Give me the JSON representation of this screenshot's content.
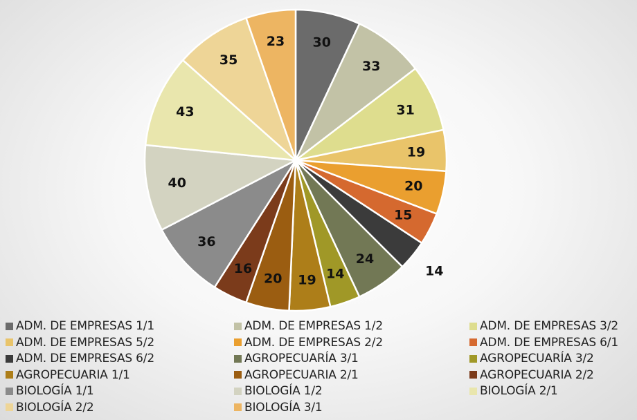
{
  "chart_data": {
    "type": "pie",
    "title": "",
    "start_angle_deg": 0,
    "direction": "clockwise",
    "data_labels": true,
    "legend_position": "bottom",
    "series": [
      {
        "name": "ADM. DE EMPRESAS 1/1",
        "value": 30,
        "color": "#6b6b6b"
      },
      {
        "name": "ADM. DE EMPRESAS 1/2",
        "value": 33,
        "color": "#c2c2a6"
      },
      {
        "name": "ADM. DE EMPRESAS 3/2",
        "value": 31,
        "color": "#dedd8e"
      },
      {
        "name": "ADM. DE EMPRESAS 5/2",
        "value": 19,
        "color": "#e9c46a"
      },
      {
        "name": "ADM. DE EMPRESAS 2/2",
        "value": 20,
        "color": "#ea9f2f"
      },
      {
        "name": "ADM. DE EMPRESAS 6/1",
        "value": 15,
        "color": "#d5692f"
      },
      {
        "name": "ADM. DE EMPRESAS 6/2",
        "value": 14,
        "color": "#3b3b3b"
      },
      {
        "name": "AGROPECUARÍA 3/1",
        "value": 24,
        "color": "#727855"
      },
      {
        "name": "AGROPECUARÍA 3/2",
        "value": 14,
        "color": "#a09827"
      },
      {
        "name": "AGROPECUARIA 1/1",
        "value": 19,
        "color": "#ad7e19"
      },
      {
        "name": "AGROPECUARIA 2/1",
        "value": 20,
        "color": "#9b5d11"
      },
      {
        "name": "AGROPECUARIA 2/2",
        "value": 16,
        "color": "#7b3b1b"
      },
      {
        "name": "BIOLOGÍA 1/1",
        "value": 36,
        "color": "#8b8b8b"
      },
      {
        "name": "BIOLOGÍA 1/2",
        "value": 40,
        "color": "#d3d3c1"
      },
      {
        "name": "BIOLOGÍA 2/1",
        "value": 43,
        "color": "#e9e6ad"
      },
      {
        "name": "BIOLOGÍA 2/2",
        "value": 35,
        "color": "#eed597"
      },
      {
        "name": "BIOLOGÍA 3/1",
        "value": 23,
        "color": "#edb562"
      }
    ]
  }
}
